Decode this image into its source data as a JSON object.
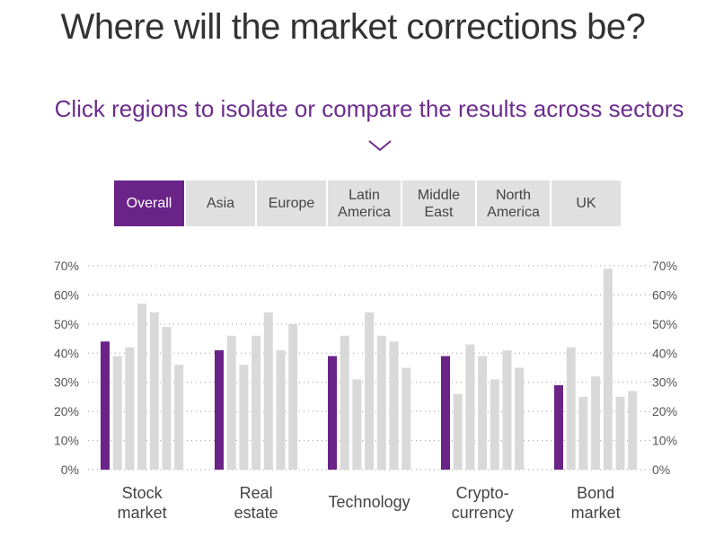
{
  "header": {
    "title": "Where will the market corrections be?",
    "subtitle": "Click regions to isolate or compare the results across sectors"
  },
  "icons": {
    "expand": "chevron-down-icon"
  },
  "colors": {
    "accent": "#6a2387",
    "inactive_bar": "#d9d9d9",
    "tab_bg": "#e0e0e0",
    "subtitle": "#6c2d8c"
  },
  "tabs": [
    {
      "label": "Overall",
      "active": true
    },
    {
      "label": "Asia",
      "active": false
    },
    {
      "label": "Europe",
      "active": false
    },
    {
      "label": "Latin\nAmerica",
      "active": false
    },
    {
      "label": "Middle\nEast",
      "active": false
    },
    {
      "label": "North\nAmerica",
      "active": false
    },
    {
      "label": "UK",
      "active": false
    }
  ],
  "chart_data": {
    "type": "bar",
    "ylim": [
      0,
      70
    ],
    "y_ticks": [
      "0%",
      "10%",
      "20%",
      "30%",
      "40%",
      "50%",
      "60%",
      "70%"
    ],
    "grid": true,
    "categories": [
      "Stock\nmarket",
      "Real\nestate",
      "Technology",
      "Crypto-\ncurrency",
      "Bond\nmarket"
    ],
    "series": [
      {
        "name": "Overall",
        "values": [
          44,
          41,
          39,
          39,
          29
        ]
      },
      {
        "name": "Asia",
        "values": [
          39,
          46,
          46,
          26,
          42
        ]
      },
      {
        "name": "Europe",
        "values": [
          42,
          36,
          31,
          43,
          25
        ]
      },
      {
        "name": "Latin America",
        "values": [
          57,
          46,
          54,
          39,
          32
        ]
      },
      {
        "name": "Middle East",
        "values": [
          54,
          54,
          46,
          31,
          69
        ]
      },
      {
        "name": "North America",
        "values": [
          49,
          41,
          44,
          41,
          25
        ]
      },
      {
        "name": "UK",
        "values": [
          36,
          50,
          35,
          35,
          27
        ]
      }
    ]
  }
}
